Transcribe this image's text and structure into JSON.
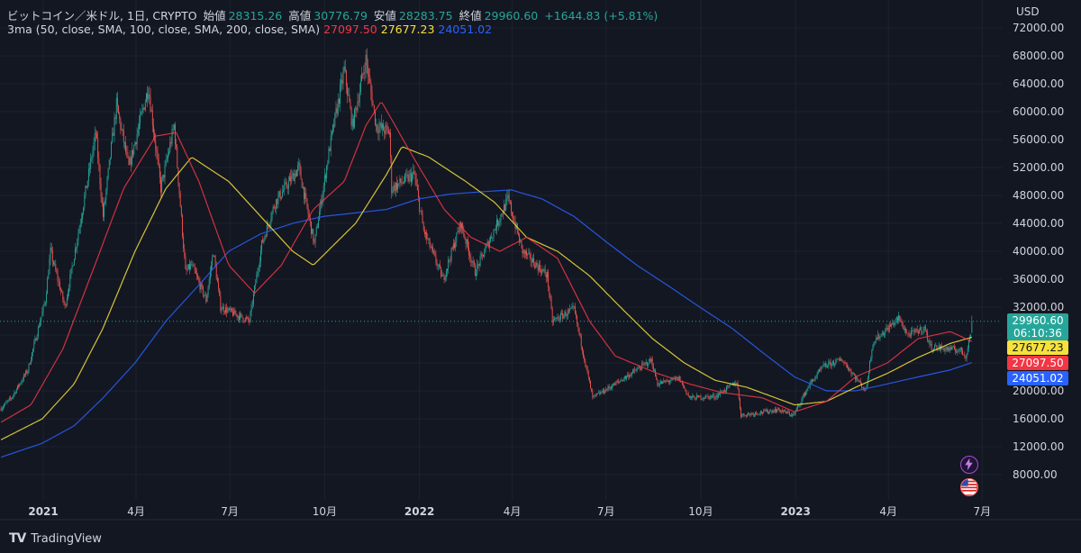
{
  "header": {
    "symbol": "ビットコイン／米ドル, 1日, CRYPTO",
    "open_label": "始値",
    "open": "28315.26",
    "high_label": "高値",
    "high": "30776.79",
    "low_label": "安値",
    "low": "28283.75",
    "close_label": "終値",
    "close": "29960.60",
    "change": "+1644.83 (+5.81%)"
  },
  "indicator": {
    "name": "3ma (50, close, SMA, 100, close, SMA, 200, close, SMA)",
    "ma50": "27097.50",
    "ma100": "27677.23",
    "ma200": "24051.02"
  },
  "currency": "USD",
  "price_tags": {
    "last": "29960.60",
    "countdown": "06:10:36",
    "ma100": "27677.23",
    "ma50": "27097.50",
    "ma200": "24051.02"
  },
  "footer": {
    "brand": "TradingView",
    "logo_text": "TV"
  },
  "colors": {
    "background": "#131722",
    "up": "#26a69a",
    "down": "#ef5350",
    "ma50": "#f23645",
    "ma100": "#f7e13b",
    "ma200": "#2962ff"
  },
  "icons": [
    "lightning-icon",
    "us-flag-icon"
  ],
  "chart_data": {
    "type": "line",
    "description_type": "candlestick",
    "y_axis": {
      "unit": "USD",
      "range": [
        6000,
        74000
      ],
      "ticks": [
        "72000.00",
        "68000.00",
        "64000.00",
        "60000.00",
        "56000.00",
        "52000.00",
        "48000.00",
        "44000.00",
        "40000.00",
        "36000.00",
        "32000.00",
        "28000.00",
        "24000.00",
        "20000.00",
        "16000.00",
        "12000.00",
        "8000.00"
      ]
    },
    "x_axis": {
      "range": [
        "2020-11-20",
        "2023-07-20"
      ],
      "ticks": [
        {
          "date": "2021-01-01",
          "label": "2021"
        },
        {
          "date": "2021-04-01",
          "label": "4月"
        },
        {
          "date": "2021-07-01",
          "label": "7月"
        },
        {
          "date": "2021-10-01",
          "label": "10月"
        },
        {
          "date": "2022-01-01",
          "label": "2022"
        },
        {
          "date": "2022-04-01",
          "label": "4月"
        },
        {
          "date": "2022-07-01",
          "label": "7月"
        },
        {
          "date": "2022-10-01",
          "label": "10月"
        },
        {
          "date": "2023-01-01",
          "label": "2023"
        },
        {
          "date": "2023-04-01",
          "label": "4月"
        },
        {
          "date": "2023-07-01",
          "label": "7月"
        }
      ]
    },
    "price_keypoints": [
      [
        "2020-11-21",
        17500
      ],
      [
        "2020-12-01",
        19000
      ],
      [
        "2020-12-17",
        23000
      ],
      [
        "2021-01-03",
        33000
      ],
      [
        "2021-01-08",
        40000
      ],
      [
        "2021-01-22",
        32000
      ],
      [
        "2021-02-08",
        46000
      ],
      [
        "2021-02-21",
        57000
      ],
      [
        "2021-02-28",
        45000
      ],
      [
        "2021-03-13",
        61000
      ],
      [
        "2021-03-25",
        52000
      ],
      [
        "2021-04-13",
        63500
      ],
      [
        "2021-04-25",
        49000
      ],
      [
        "2021-05-08",
        58000
      ],
      [
        "2021-05-19",
        37000
      ],
      [
        "2021-05-25",
        38000
      ],
      [
        "2021-06-08",
        33000
      ],
      [
        "2021-06-15",
        40000
      ],
      [
        "2021-06-22",
        32000
      ],
      [
        "2021-07-20",
        30000
      ],
      [
        "2021-08-01",
        41000
      ],
      [
        "2021-08-14",
        47000
      ],
      [
        "2021-09-06",
        52000
      ],
      [
        "2021-09-21",
        41000
      ],
      [
        "2021-10-06",
        55000
      ],
      [
        "2021-10-20",
        66000
      ],
      [
        "2021-10-28",
        58000
      ],
      [
        "2021-11-10",
        67500
      ],
      [
        "2021-11-20",
        58000
      ],
      [
        "2021-12-03",
        57000
      ],
      [
        "2021-12-05",
        49000
      ],
      [
        "2021-12-27",
        51000
      ],
      [
        "2022-01-05",
        43000
      ],
      [
        "2022-01-24",
        36000
      ],
      [
        "2022-02-10",
        44000
      ],
      [
        "2022-02-24",
        37000
      ],
      [
        "2022-03-28",
        47500
      ],
      [
        "2022-04-11",
        40000
      ],
      [
        "2022-05-05",
        36500
      ],
      [
        "2022-05-10",
        30000
      ],
      [
        "2022-05-31",
        31700
      ],
      [
        "2022-06-13",
        22500
      ],
      [
        "2022-06-18",
        19000
      ],
      [
        "2022-07-10",
        21000
      ],
      [
        "2022-08-14",
        24400
      ],
      [
        "2022-08-20",
        21000
      ],
      [
        "2022-09-10",
        21800
      ],
      [
        "2022-09-20",
        19000
      ],
      [
        "2022-10-15",
        19200
      ],
      [
        "2022-11-05",
        21300
      ],
      [
        "2022-11-09",
        16500
      ],
      [
        "2022-12-15",
        17300
      ],
      [
        "2022-12-30",
        16500
      ],
      [
        "2023-01-14",
        20800
      ],
      [
        "2023-01-28",
        23500
      ],
      [
        "2023-02-15",
        24500
      ],
      [
        "2023-03-10",
        20000
      ],
      [
        "2023-03-17",
        27000
      ],
      [
        "2023-04-11",
        30400
      ],
      [
        "2023-04-20",
        28000
      ],
      [
        "2023-05-06",
        29000
      ],
      [
        "2023-05-12",
        26300
      ],
      [
        "2023-06-10",
        25800
      ],
      [
        "2023-06-15",
        25000
      ],
      [
        "2023-06-20",
        28300
      ],
      [
        "2023-06-21",
        29960.6
      ]
    ],
    "sma50_keypoints": [
      [
        "2020-11-21",
        15500
      ],
      [
        "2020-12-20",
        18000
      ],
      [
        "2021-01-20",
        26000
      ],
      [
        "2021-02-20",
        38000
      ],
      [
        "2021-03-20",
        49000
      ],
      [
        "2021-04-20",
        56500
      ],
      [
        "2021-05-10",
        57000
      ],
      [
        "2021-06-01",
        50000
      ],
      [
        "2021-06-30",
        38000
      ],
      [
        "2021-07-25",
        34000
      ],
      [
        "2021-08-20",
        38000
      ],
      [
        "2021-09-20",
        46000
      ],
      [
        "2021-10-20",
        50000
      ],
      [
        "2021-11-10",
        58000
      ],
      [
        "2021-11-25",
        61500
      ],
      [
        "2021-12-20",
        55000
      ],
      [
        "2022-01-25",
        46000
      ],
      [
        "2022-02-20",
        42000
      ],
      [
        "2022-03-20",
        40000
      ],
      [
        "2022-04-15",
        42000
      ],
      [
        "2022-05-15",
        39000
      ],
      [
        "2022-06-15",
        30000
      ],
      [
        "2022-07-10",
        25000
      ],
      [
        "2022-08-20",
        22500
      ],
      [
        "2022-09-20",
        21000
      ],
      [
        "2022-10-20",
        19800
      ],
      [
        "2022-11-30",
        19000
      ],
      [
        "2022-12-31",
        17000
      ],
      [
        "2023-01-31",
        18500
      ],
      [
        "2023-02-28",
        22000
      ],
      [
        "2023-03-31",
        24000
      ],
      [
        "2023-04-30",
        27500
      ],
      [
        "2023-05-31",
        28500
      ],
      [
        "2023-06-21",
        27097.5
      ]
    ],
    "sma100_keypoints": [
      [
        "2020-11-21",
        13000
      ],
      [
        "2020-12-31",
        16000
      ],
      [
        "2021-01-31",
        21000
      ],
      [
        "2021-02-28",
        29000
      ],
      [
        "2021-03-31",
        40000
      ],
      [
        "2021-04-30",
        49000
      ],
      [
        "2021-05-25",
        53500
      ],
      [
        "2021-06-30",
        50000
      ],
      [
        "2021-07-31",
        45000
      ],
      [
        "2021-08-31",
        40000
      ],
      [
        "2021-09-20",
        38000
      ],
      [
        "2021-10-31",
        44000
      ],
      [
        "2021-11-30",
        51000
      ],
      [
        "2021-12-15",
        55000
      ],
      [
        "2022-01-10",
        53500
      ],
      [
        "2022-02-15",
        50000
      ],
      [
        "2022-03-15",
        47000
      ],
      [
        "2022-04-15",
        42000
      ],
      [
        "2022-05-15",
        40000
      ],
      [
        "2022-06-15",
        36500
      ],
      [
        "2022-07-15",
        32000
      ],
      [
        "2022-08-15",
        27500
      ],
      [
        "2022-09-15",
        24000
      ],
      [
        "2022-10-15",
        21500
      ],
      [
        "2022-11-15",
        20500
      ],
      [
        "2022-12-31",
        18000
      ],
      [
        "2023-01-31",
        18500
      ],
      [
        "2023-02-28",
        20500
      ],
      [
        "2023-03-31",
        22500
      ],
      [
        "2023-04-30",
        24800
      ],
      [
        "2023-05-31",
        26800
      ],
      [
        "2023-06-21",
        27677.23
      ]
    ],
    "sma200_keypoints": [
      [
        "2020-11-21",
        10500
      ],
      [
        "2020-12-31",
        12500
      ],
      [
        "2021-01-31",
        15000
      ],
      [
        "2021-02-28",
        19000
      ],
      [
        "2021-03-31",
        24000
      ],
      [
        "2021-04-30",
        30000
      ],
      [
        "2021-05-31",
        35000
      ],
      [
        "2021-06-30",
        40000
      ],
      [
        "2021-07-31",
        42500
      ],
      [
        "2021-08-31",
        44000
      ],
      [
        "2021-09-30",
        45000
      ],
      [
        "2021-10-31",
        45500
      ],
      [
        "2021-11-30",
        46000
      ],
      [
        "2021-12-31",
        47500
      ],
      [
        "2022-01-31",
        48200
      ],
      [
        "2022-02-28",
        48500
      ],
      [
        "2022-03-31",
        48800
      ],
      [
        "2022-04-30",
        47500
      ],
      [
        "2022-05-31",
        45000
      ],
      [
        "2022-06-30",
        41500
      ],
      [
        "2022-07-31",
        38000
      ],
      [
        "2022-08-31",
        35000
      ],
      [
        "2022-09-30",
        32000
      ],
      [
        "2022-10-31",
        29000
      ],
      [
        "2022-11-30",
        25500
      ],
      [
        "2022-12-31",
        22000
      ],
      [
        "2023-01-31",
        20000
      ],
      [
        "2023-02-28",
        20000
      ],
      [
        "2023-03-31",
        21000
      ],
      [
        "2023-04-30",
        22000
      ],
      [
        "2023-05-31",
        23000
      ],
      [
        "2023-06-21",
        24051.02
      ]
    ],
    "last_price": 29960.6
  }
}
